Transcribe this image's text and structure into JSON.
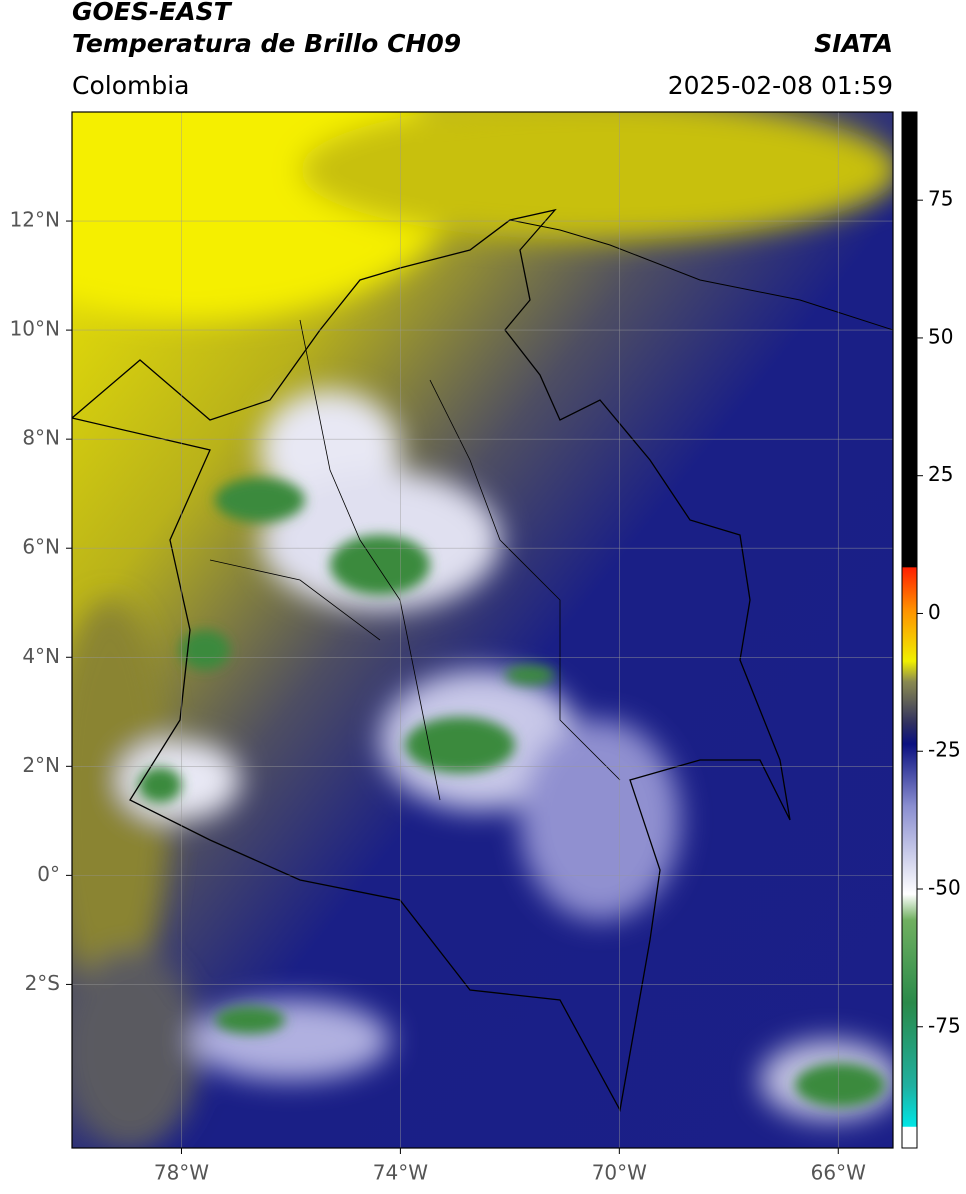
{
  "header": {
    "title": "GOES-EAST",
    "subtitle": "Temperatura de Brillo CH09",
    "source": "SIATA",
    "region": "Colombia",
    "timestamp": "2025-02-08 01:59"
  },
  "map": {
    "xlim": [
      -80,
      -65
    ],
    "ylim": [
      -5,
      14
    ],
    "xticks": [
      {
        "value": -78,
        "label": "78°W"
      },
      {
        "value": -74,
        "label": "74°W"
      },
      {
        "value": -70,
        "label": "70°W"
      },
      {
        "value": -66,
        "label": "66°W"
      }
    ],
    "yticks": [
      {
        "value": 12,
        "label": "12°N"
      },
      {
        "value": 10,
        "label": "10°N"
      },
      {
        "value": 8,
        "label": "8°N"
      },
      {
        "value": 6,
        "label": "6°N"
      },
      {
        "value": 4,
        "label": "4°N"
      },
      {
        "value": 2,
        "label": "2°N"
      },
      {
        "value": 0,
        "label": "0°"
      },
      {
        "value": -2,
        "label": "2°S"
      }
    ],
    "grid": true
  },
  "colorbar": {
    "lim": [
      -97,
      91
    ],
    "ticks": [
      75,
      50,
      25,
      0,
      -25,
      -50,
      -75
    ]
  }
}
